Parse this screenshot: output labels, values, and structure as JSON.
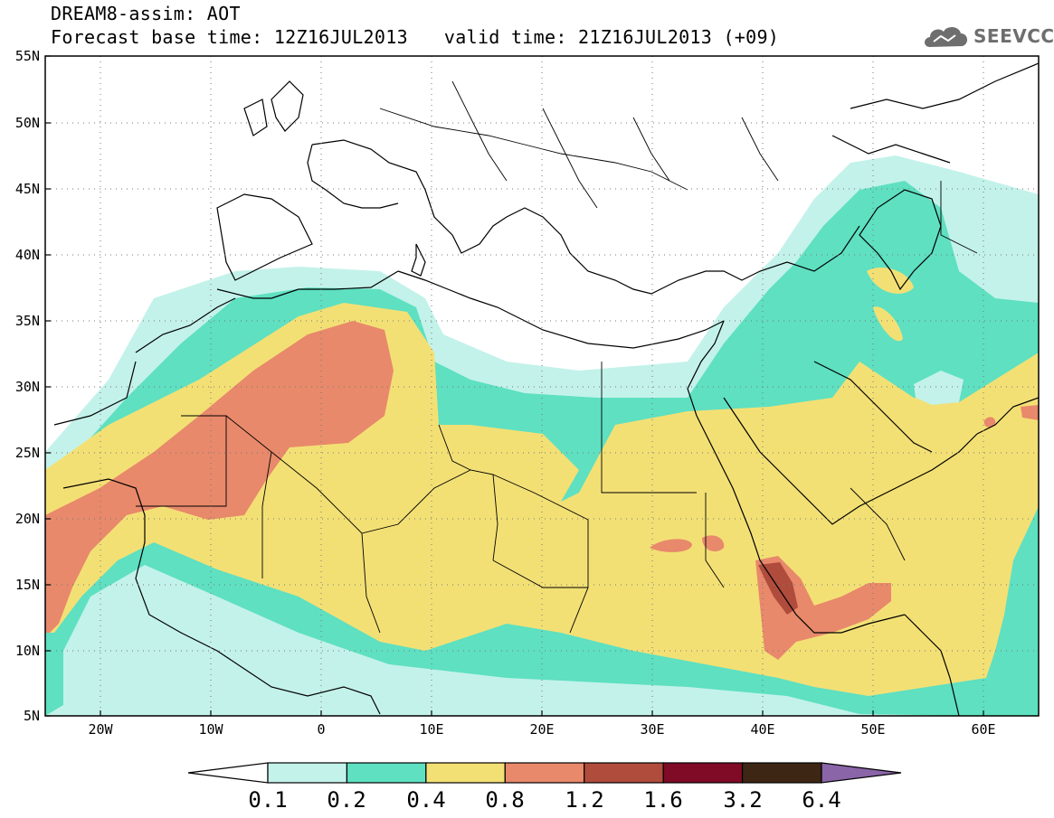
{
  "header": {
    "title": "DREAM8-assim: AOT",
    "base_time": "Forecast base time: 12Z16JUL2013",
    "valid_time": "valid time: 21Z16JUL2013 (+09)"
  },
  "logo": {
    "text": "SEEVCCC",
    "icon": "cloud-icon"
  },
  "map": {
    "lon_range": [
      -25,
      65
    ],
    "lat_range": [
      5,
      55
    ],
    "lat_ticks": [
      "55N",
      "50N",
      "45N",
      "40N",
      "35N",
      "30N",
      "25N",
      "20N",
      "15N",
      "10N",
      "5N"
    ],
    "lon_ticks": [
      "20W",
      "10W",
      "0",
      "10E",
      "20E",
      "30E",
      "40E",
      "50E",
      "60E"
    ],
    "grid": "dotted"
  },
  "colorbar": {
    "bins": [
      {
        "color": "#c3f2ea"
      },
      {
        "color": "#5ee0c1"
      },
      {
        "color": "#f3e075"
      },
      {
        "color": "#e8896b"
      },
      {
        "color": "#b04c3c"
      },
      {
        "color": "#800b26"
      },
      {
        "color": "#3e2615"
      }
    ],
    "under_color": "#ffffff",
    "over_color": "#8a65a8",
    "labels": [
      "0.1",
      "0.2",
      "0.4",
      "0.8",
      "1.2",
      "1.6",
      "3.2",
      "6.4"
    ]
  }
}
